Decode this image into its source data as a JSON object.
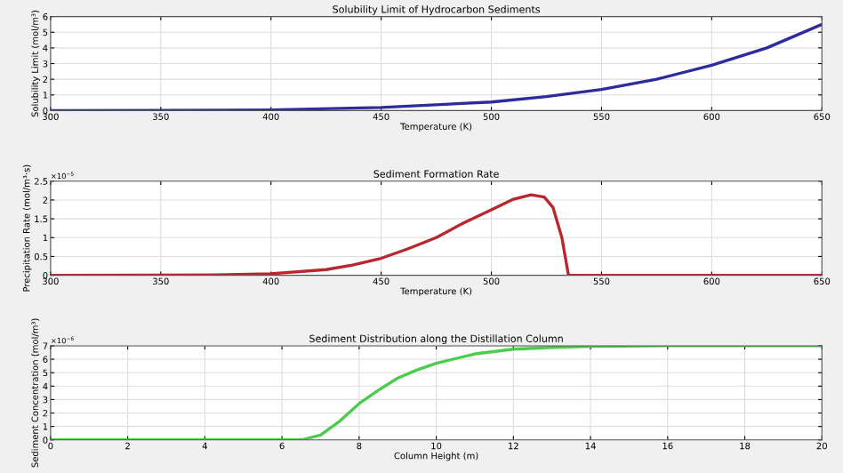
{
  "chart_data": [
    {
      "type": "line",
      "title": "Solubility Limit of Hydrocarbon Sediments",
      "xlabel": "Temperature (K)",
      "ylabel": "Solubility Limit (mol/m³)",
      "x": [
        300,
        350,
        400,
        450,
        500,
        525,
        550,
        575,
        600,
        625,
        650
      ],
      "series": [
        {
          "color": "#2c2c9c",
          "values": [
            0,
            0.01,
            0.05,
            0.2,
            0.55,
            0.9,
            1.35,
            2.0,
            2.9,
            4.0,
            5.5
          ]
        }
      ],
      "xlim": [
        300,
        650
      ],
      "xticks": [
        300,
        350,
        400,
        450,
        500,
        550,
        600,
        650
      ],
      "ylim": [
        0,
        6
      ],
      "yticks": [
        0,
        1,
        2,
        3,
        4,
        5,
        6
      ],
      "grid": true
    },
    {
      "type": "line",
      "title": "Sediment Formation Rate",
      "xlabel": "Temperature (K)",
      "ylabel": "Precipitation Rate (mol/m³·s)",
      "subtitle": "×10$^{−5}$",
      "x": [
        300,
        350,
        375,
        400,
        425,
        437,
        450,
        462,
        475,
        487,
        500,
        510,
        518,
        524,
        528,
        532,
        535,
        550,
        600,
        650
      ],
      "series": [
        {
          "color": "#b8262e",
          "values": [
            0,
            0.003,
            0.01,
            0.04,
            0.15,
            0.27,
            0.45,
            0.7,
            1.0,
            1.38,
            1.74,
            2.02,
            2.14,
            2.08,
            1.8,
            1.0,
            0,
            0,
            0,
            0
          ]
        }
      ],
      "xlim": [
        300,
        650
      ],
      "xticks": [
        300,
        350,
        400,
        450,
        500,
        550,
        600,
        650
      ],
      "ylim": [
        0,
        2.5
      ],
      "yticks": [
        0,
        0.5,
        1,
        1.5,
        2,
        2.5
      ],
      "grid": true
    },
    {
      "type": "line",
      "title": "Sediment Distribution along the Distillation Column",
      "xlabel": "Column Height (m)",
      "ylabel": "Sediment Concentration (mol/m³)",
      "subtitle": "×10$^{−6}$",
      "x": [
        0,
        2,
        4,
        6,
        6.5,
        7,
        7.5,
        8,
        8.5,
        9,
        9.5,
        10,
        11,
        12,
        13,
        14,
        16,
        18,
        20
      ],
      "series": [
        {
          "color": "#4ccc4c",
          "values": [
            0,
            0,
            0,
            0,
            0,
            0.35,
            1.4,
            2.7,
            3.7,
            4.6,
            5.2,
            5.7,
            6.4,
            6.75,
            6.88,
            6.95,
            7.0,
            7.0,
            7.0
          ]
        }
      ],
      "xlim": [
        0,
        20
      ],
      "xticks": [
        0,
        2,
        4,
        6,
        8,
        10,
        12,
        14,
        16,
        18,
        20
      ],
      "ylim": [
        0,
        7
      ],
      "yticks": [
        0,
        1,
        2,
        3,
        4,
        5,
        6,
        7
      ],
      "grid": true
    }
  ]
}
